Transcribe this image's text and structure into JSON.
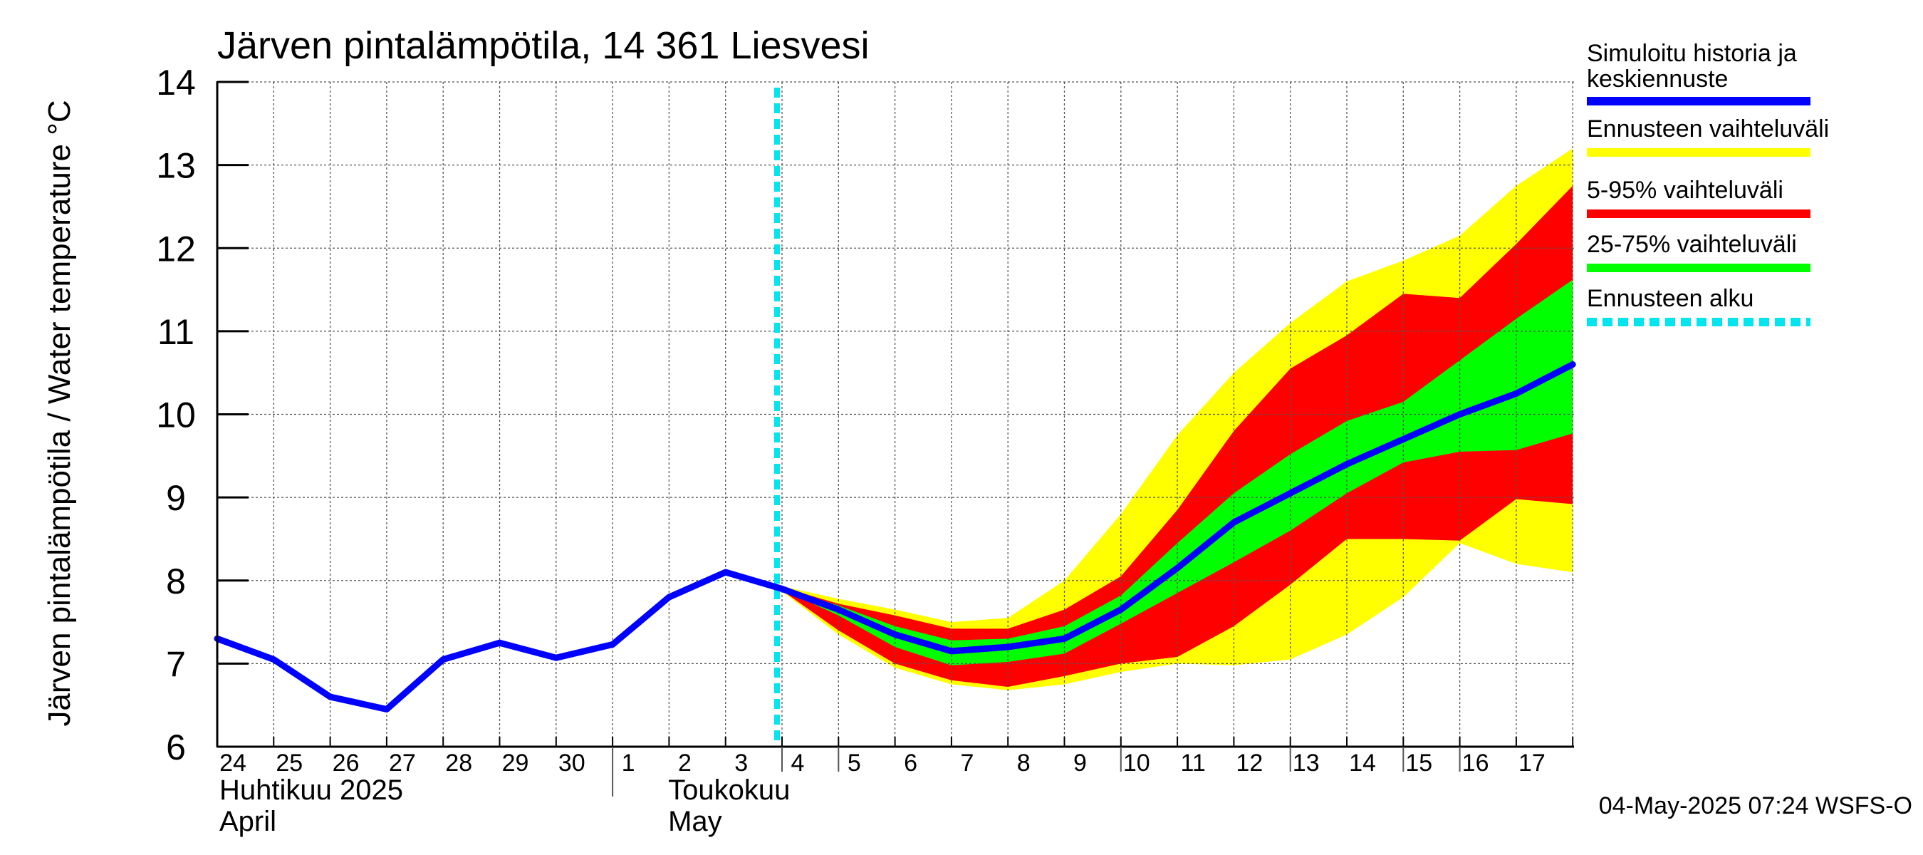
{
  "chart_data": {
    "type": "area",
    "title": "Järven pintalämpötila, 14 361 Liesvesi",
    "ylabel": "Järven pintalämpötila / Water temperature °C",
    "xlabel": "",
    "ylim": [
      6,
      14
    ],
    "yticks": [
      6,
      7,
      8,
      9,
      10,
      11,
      12,
      13,
      14
    ],
    "grid": true,
    "legend_position": "right",
    "x_day_labels": [
      "24",
      "25",
      "26",
      "27",
      "28",
      "29",
      "30",
      "1",
      "2",
      "3",
      "4",
      "5",
      "6",
      "7",
      "8",
      "9",
      "10",
      "11",
      "12",
      "13",
      "14",
      "15",
      "16",
      "17"
    ],
    "x_month_labels": [
      {
        "fi": "Huhtikuu  2025",
        "en": "April"
      },
      {
        "fi": "Toukokuu",
        "en": "May"
      }
    ],
    "forecast_start": "2025-05-04",
    "x": [
      "2025-04-24",
      "2025-04-25",
      "2025-04-26",
      "2025-04-27",
      "2025-04-28",
      "2025-04-29",
      "2025-04-30",
      "2025-05-01",
      "2025-05-02",
      "2025-05-03",
      "2025-05-04",
      "2025-05-05",
      "2025-05-06",
      "2025-05-07",
      "2025-05-08",
      "2025-05-09",
      "2025-05-10",
      "2025-05-11",
      "2025-05-12",
      "2025-05-13",
      "2025-05-14",
      "2025-05-15",
      "2025-05-16",
      "2025-05-17",
      "2025-05-18"
    ],
    "series": [
      {
        "name": "Simuloitu historia ja keskiennuste",
        "color": "#0000ff",
        "values": [
          7.3,
          7.05,
          6.6,
          6.45,
          7.05,
          7.25,
          7.07,
          7.23,
          7.8,
          8.1,
          7.9,
          7.65,
          7.35,
          7.15,
          7.2,
          7.3,
          7.65,
          8.15,
          8.7,
          9.05,
          9.4,
          9.7,
          10.0,
          10.25,
          10.6
        ]
      },
      {
        "name": "Ennusteen vaihteluväli",
        "color": "#ffff00",
        "upper": [
          null,
          null,
          null,
          null,
          null,
          null,
          null,
          null,
          null,
          null,
          7.93,
          7.78,
          7.65,
          7.5,
          7.55,
          8.0,
          8.8,
          9.75,
          10.5,
          11.1,
          11.6,
          11.85,
          12.15,
          12.75,
          13.2
        ],
        "lower": [
          null,
          null,
          null,
          null,
          null,
          null,
          null,
          null,
          null,
          null,
          7.87,
          7.35,
          6.95,
          6.75,
          6.68,
          6.75,
          6.9,
          7.0,
          6.98,
          7.05,
          7.35,
          7.8,
          8.45,
          8.2,
          8.1
        ]
      },
      {
        "name": "5-95% vaihteluväli",
        "color": "#ff0000",
        "upper": [
          null,
          null,
          null,
          null,
          null,
          null,
          null,
          null,
          null,
          null,
          7.92,
          7.72,
          7.58,
          7.42,
          7.42,
          7.65,
          8.05,
          8.85,
          9.8,
          10.55,
          10.95,
          11.45,
          11.4,
          12.05,
          12.75
        ],
        "lower": [
          null,
          null,
          null,
          null,
          null,
          null,
          null,
          null,
          null,
          null,
          7.88,
          7.4,
          7.0,
          6.8,
          6.72,
          6.85,
          7.0,
          7.08,
          7.45,
          7.95,
          8.5,
          8.5,
          8.48,
          8.98,
          8.92
        ]
      },
      {
        "name": "25-75% vaihteluväli",
        "color": "#00ff00",
        "upper": [
          null,
          null,
          null,
          null,
          null,
          null,
          null,
          null,
          null,
          null,
          7.91,
          7.7,
          7.45,
          7.28,
          7.3,
          7.45,
          7.82,
          8.45,
          9.05,
          9.52,
          9.92,
          10.15,
          10.65,
          11.15,
          11.62
        ],
        "lower": [
          null,
          null,
          null,
          null,
          null,
          null,
          null,
          null,
          null,
          null,
          7.89,
          7.58,
          7.2,
          6.98,
          7.02,
          7.12,
          7.48,
          7.85,
          8.22,
          8.6,
          9.05,
          9.42,
          9.55,
          9.57,
          9.77
        ]
      },
      {
        "name": "Ennusteen alku",
        "color": "#00e5ee"
      }
    ]
  },
  "legend": [
    {
      "label": "Simuloitu historia ja",
      "label2": "keskiennuste",
      "color": "#0000ff",
      "style": "solid"
    },
    {
      "label": "Ennusteen vaihteluväli",
      "color": "#ffff00",
      "style": "solid"
    },
    {
      "label": "5-95% vaihteluväli",
      "color": "#ff0000",
      "style": "solid"
    },
    {
      "label": "25-75% vaihteluväli",
      "color": "#00ff00",
      "style": "solid"
    },
    {
      "label": "Ennusteen alku",
      "color": "#00e5ee",
      "style": "dashed"
    }
  ],
  "footer": {
    "timestamp": "04-May-2025 07:24 WSFS-O"
  }
}
